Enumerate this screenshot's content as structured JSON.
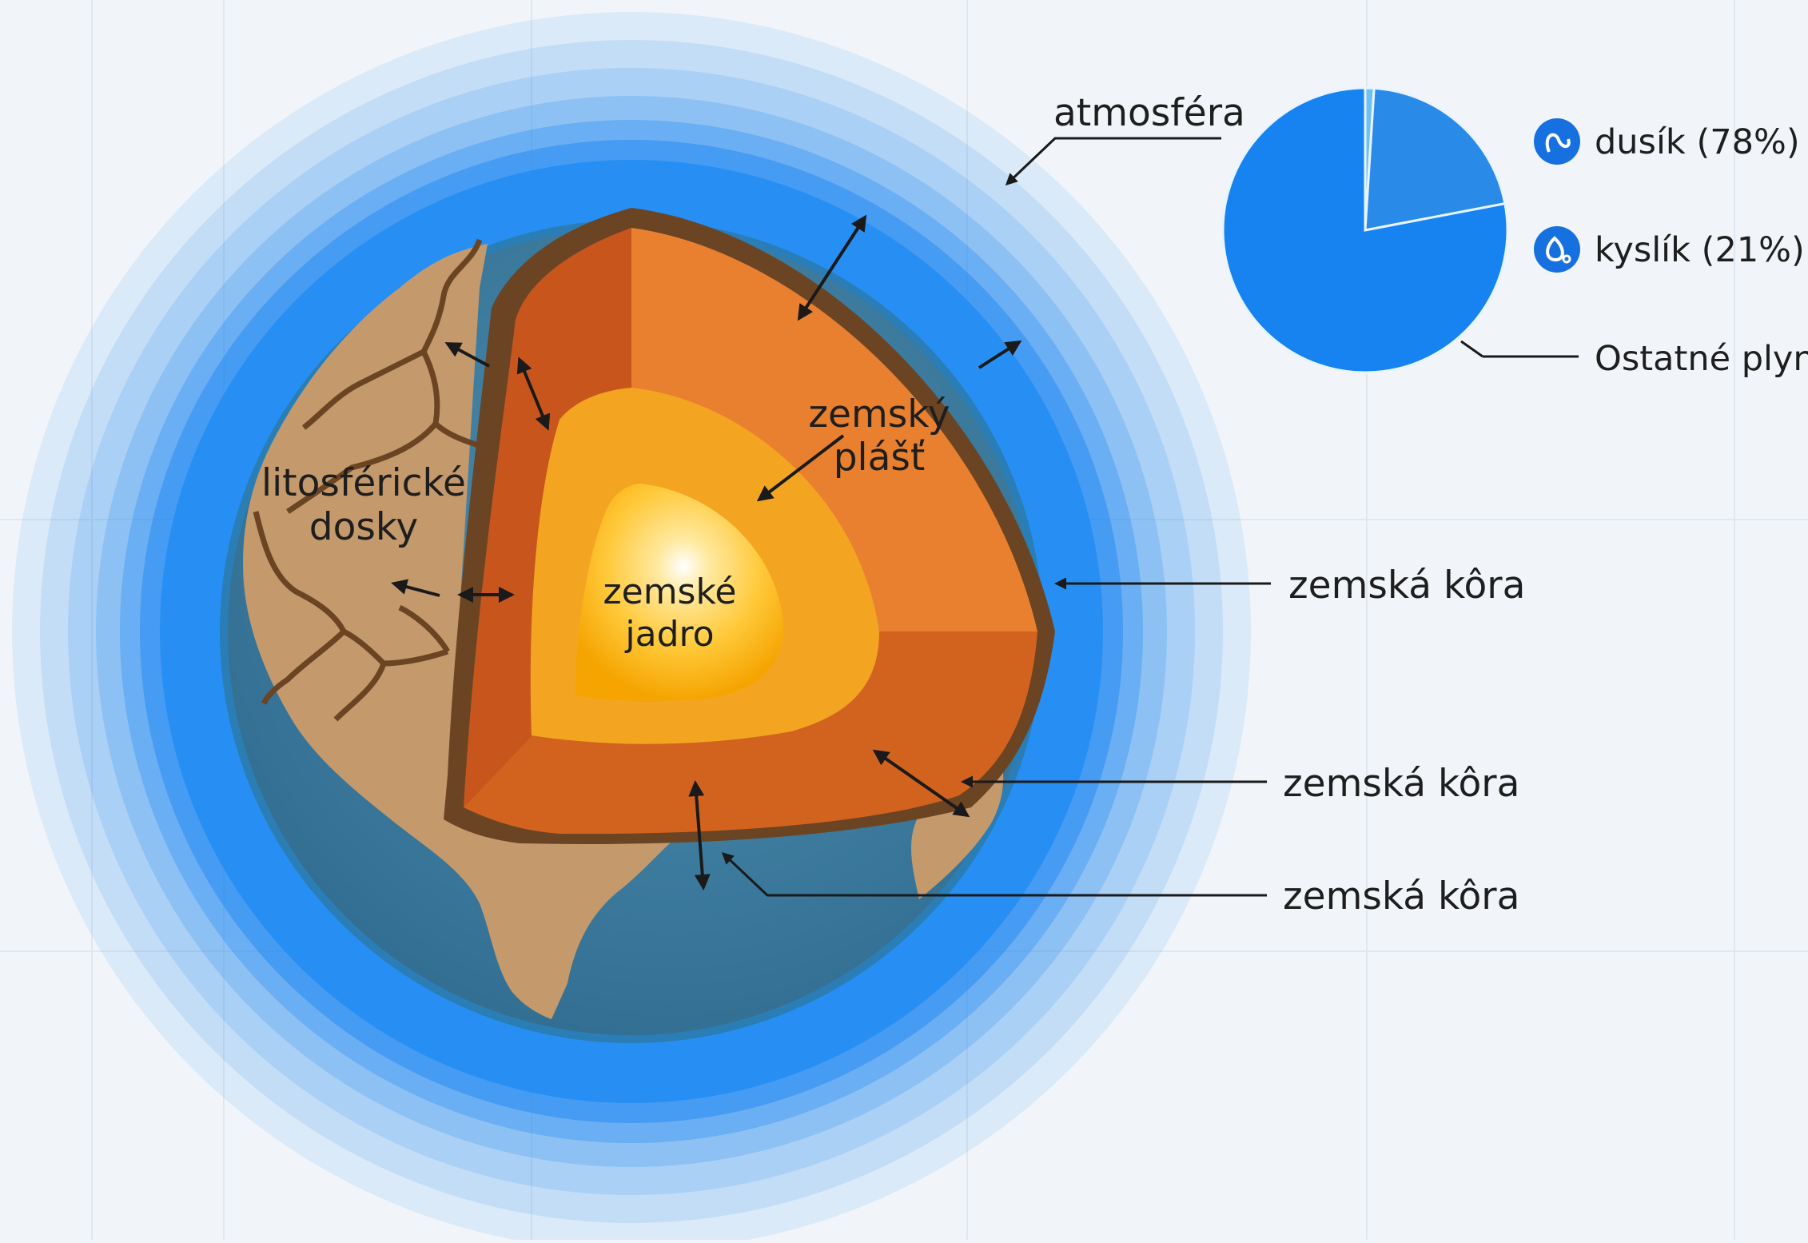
{
  "labels": {
    "atmosphere": "atmosféra",
    "plates_line1": "litosférické",
    "plates_line2": "dosky",
    "mantle_line1": "zemský",
    "mantle_line2": "plášť",
    "core_line1": "zemské",
    "core_line2": "jadro",
    "crust_1": "zemská kôra",
    "crust_2": "zemská kôra",
    "crust_3": "zemská kôra"
  },
  "atmosphere_composition": {
    "legend": {
      "nitrogen": "dusík (78%)",
      "oxygen": "kyslík (21%)",
      "other": "Ostatné plyny"
    },
    "slices": [
      {
        "key": "nitrogen",
        "value": 78,
        "color": "#1683f0"
      },
      {
        "key": "oxygen",
        "value": 21,
        "color": "#2a8ae8"
      },
      {
        "key": "other",
        "value": 1,
        "color": "#6fc0f2"
      }
    ]
  },
  "colors": {
    "background": "#f1f5f9",
    "atmosphere_blue": "#1a85f2",
    "ocean": "#2f6f92",
    "land": "#c49a6c",
    "crust_dark": "#6b4424",
    "mantle": "#e8802f",
    "mantle_side": "#c8561c",
    "outer_core": "#f3a521",
    "inner_core": "#ffd86a",
    "legend_icon": "#1670e0"
  },
  "icons": [
    "nitrogen-molecule-icon",
    "oxygen-molecule-icon"
  ]
}
